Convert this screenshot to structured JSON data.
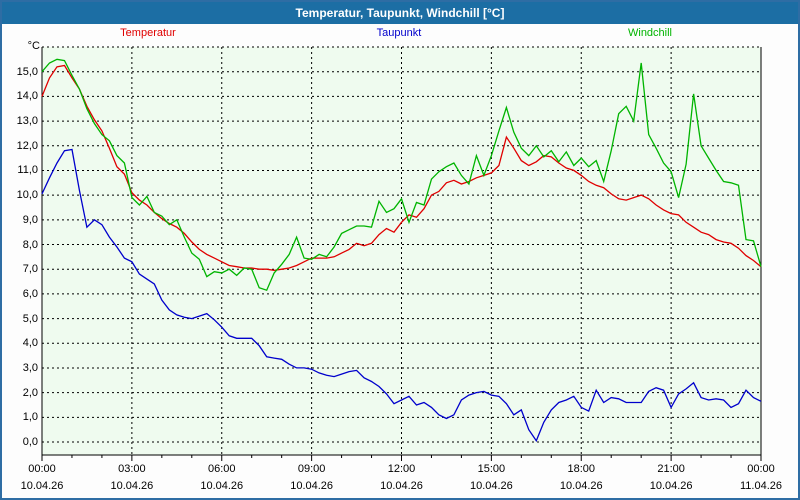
{
  "header": {
    "title": "Temperatur, Taupunkt, Windchill [°C]",
    "legend": [
      {
        "label": "Temperatur",
        "color": "#e00000",
        "x": 146
      },
      {
        "label": "Taupunkt",
        "color": "#0000cc",
        "x": 397
      },
      {
        "label": "Windchill",
        "color": "#00b400",
        "x": 648
      }
    ]
  },
  "colors": {
    "titlebar_bg": "#1c6ea4",
    "titlebar_text": "#ffffff",
    "frame_border": "#2e6da4",
    "plot_background": "#effbef",
    "grid": "#000000",
    "axis": "#000000"
  },
  "chart_data": {
    "type": "line",
    "title": "Temperatur, Taupunkt, Windchill [°C]",
    "x_range_hours": [
      0,
      24
    ],
    "x_step_minutes": 15,
    "grid": "dashed",
    "legend_position": "top",
    "y_axis": {
      "unit_label": "°C",
      "min": 0,
      "max": 16,
      "tick_step": 1,
      "tick_labels": [
        "0,0",
        "1,0",
        "2,0",
        "3,0",
        "4,0",
        "5,0",
        "6,0",
        "7,0",
        "8,0",
        "9,0",
        "10,0",
        "11,0",
        "12,0",
        "13,0",
        "14,0",
        "15,0"
      ]
    },
    "x_ticks": [
      {
        "hour": 0,
        "time": "00:00",
        "date": "10.04.26"
      },
      {
        "hour": 3,
        "time": "03:00",
        "date": "10.04.26"
      },
      {
        "hour": 6,
        "time": "06:00",
        "date": "10.04.26"
      },
      {
        "hour": 9,
        "time": "09:00",
        "date": "10.04.26"
      },
      {
        "hour": 12,
        "time": "12:00",
        "date": "10.04.26"
      },
      {
        "hour": 15,
        "time": "15:00",
        "date": "10.04.26"
      },
      {
        "hour": 18,
        "time": "18:00",
        "date": "10.04.26"
      },
      {
        "hour": 21,
        "time": "21:00",
        "date": "10.04.26"
      },
      {
        "hour": 24,
        "time": "00:00",
        "date": "11.04.26"
      }
    ],
    "series": [
      {
        "name": "Temperatur",
        "color": "#e00000",
        "values": [
          14.0,
          14.75,
          15.2,
          15.25,
          14.75,
          14.3,
          13.6,
          13.05,
          12.6,
          11.9,
          11.15,
          10.85,
          10.1,
          9.8,
          9.6,
          9.3,
          9.05,
          8.85,
          8.7,
          8.45,
          8.1,
          7.8,
          7.6,
          7.45,
          7.3,
          7.15,
          7.1,
          7.05,
          7.05,
          7.0,
          7.0,
          6.95,
          7.0,
          7.05,
          7.15,
          7.3,
          7.45,
          7.45,
          7.45,
          7.5,
          7.65,
          7.8,
          8.05,
          7.95,
          8.05,
          8.4,
          8.65,
          8.5,
          8.9,
          9.2,
          9.1,
          9.45,
          10.0,
          10.15,
          10.5,
          10.6,
          10.45,
          10.55,
          10.7,
          10.8,
          10.9,
          11.2,
          12.35,
          11.9,
          11.4,
          11.2,
          11.35,
          11.6,
          11.55,
          11.3,
          11.1,
          11.0,
          10.8,
          10.55,
          10.4,
          10.3,
          10.05,
          9.85,
          9.8,
          9.9,
          10.0,
          9.85,
          9.6,
          9.4,
          9.25,
          9.2,
          8.9,
          8.7,
          8.5,
          8.4,
          8.2,
          8.1,
          8.05,
          7.85,
          7.55,
          7.35,
          7.1
        ]
      },
      {
        "name": "Taupunkt",
        "color": "#0000cc",
        "values": [
          10.05,
          10.7,
          11.3,
          11.8,
          11.85,
          10.2,
          8.7,
          9.0,
          8.8,
          8.3,
          7.9,
          7.45,
          7.3,
          6.8,
          6.6,
          6.4,
          5.75,
          5.35,
          5.15,
          5.05,
          5.0,
          5.1,
          5.2,
          4.95,
          4.65,
          4.3,
          4.2,
          4.2,
          4.2,
          3.9,
          3.45,
          3.4,
          3.35,
          3.15,
          3.0,
          3.0,
          2.95,
          2.8,
          2.7,
          2.65,
          2.75,
          2.85,
          2.9,
          2.6,
          2.45,
          2.25,
          1.95,
          1.55,
          1.7,
          1.85,
          1.5,
          1.6,
          1.4,
          1.1,
          0.95,
          1.1,
          1.7,
          1.9,
          2.0,
          2.05,
          1.9,
          1.85,
          1.55,
          1.1,
          1.3,
          0.5,
          0.05,
          0.8,
          1.3,
          1.6,
          1.7,
          1.85,
          1.4,
          1.25,
          2.1,
          1.6,
          1.8,
          1.75,
          1.6,
          1.6,
          1.6,
          2.05,
          2.2,
          2.1,
          1.4,
          1.95,
          2.15,
          2.4,
          1.8,
          1.7,
          1.75,
          1.7,
          1.4,
          1.55,
          2.1,
          1.8,
          1.65
        ]
      },
      {
        "name": "Windchill",
        "color": "#00b400",
        "values": [
          15.0,
          15.35,
          15.5,
          15.45,
          14.85,
          14.3,
          13.5,
          12.9,
          12.45,
          12.2,
          11.6,
          11.3,
          9.9,
          9.6,
          9.95,
          9.3,
          9.15,
          8.8,
          9.0,
          8.3,
          7.65,
          7.4,
          6.7,
          6.9,
          6.85,
          7.0,
          6.75,
          7.05,
          7.0,
          6.25,
          6.15,
          6.85,
          7.2,
          7.6,
          8.3,
          7.45,
          7.4,
          7.6,
          7.5,
          7.9,
          8.45,
          8.6,
          8.75,
          8.75,
          8.7,
          9.75,
          9.3,
          9.45,
          9.85,
          8.9,
          9.7,
          9.6,
          10.65,
          10.95,
          11.15,
          11.3,
          10.8,
          10.45,
          11.6,
          10.8,
          11.6,
          12.6,
          13.55,
          12.55,
          11.9,
          11.6,
          12.0,
          11.55,
          11.8,
          11.35,
          11.75,
          11.2,
          11.5,
          11.15,
          11.4,
          10.55,
          11.8,
          13.3,
          13.6,
          13.0,
          15.35,
          12.45,
          11.9,
          11.3,
          10.95,
          9.9,
          11.25,
          14.1,
          12.0,
          11.5,
          11.0,
          10.55,
          10.5,
          10.4,
          8.2,
          8.15,
          7.1
        ]
      }
    ]
  }
}
